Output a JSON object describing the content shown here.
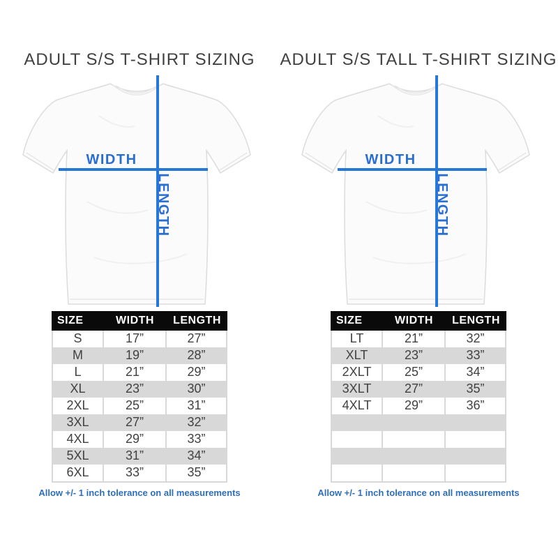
{
  "colors": {
    "measure_line_blue": "#2577d8",
    "measure_label_blue": "#2b6ed2",
    "note_blue": "#2f6eba",
    "table_header_bg": "#0a0a0a",
    "table_header_text": "#ffffff",
    "row_gray": "#d8d8d8",
    "body_text": "#414141",
    "title_text": "#414141"
  },
  "columns": [
    {
      "title": "ADULT S/S T-SHIRT SIZING",
      "diagram": {
        "width_label": "WIDTH",
        "length_label": "LENGTH"
      },
      "table": {
        "headers": [
          "SIZE",
          "WIDTH",
          "LENGTH"
        ],
        "rows": [
          [
            "S",
            "17”",
            "27”"
          ],
          [
            "M",
            "19”",
            "28”"
          ],
          [
            "L",
            "21”",
            "29”"
          ],
          [
            "XL",
            "23”",
            "30”"
          ],
          [
            "2XL",
            "25”",
            "31”"
          ],
          [
            "3XL",
            "27”",
            "32”"
          ],
          [
            "4XL",
            "29”",
            "33”"
          ],
          [
            "5XL",
            "31”",
            "34”"
          ],
          [
            "6XL",
            "33”",
            "35”"
          ]
        ]
      },
      "note": "Allow +/- 1 inch tolerance on all measurements"
    },
    {
      "title": "ADULT S/S TALL T-SHIRT SIZING",
      "diagram": {
        "width_label": "WIDTH",
        "length_label": "LENGTH"
      },
      "table": {
        "headers": [
          "SIZE",
          "WIDTH",
          "LENGTH"
        ],
        "rows": [
          [
            "LT",
            "21”",
            "32”"
          ],
          [
            "XLT",
            "23”",
            "33”"
          ],
          [
            "2XLT",
            "25”",
            "34”"
          ],
          [
            "3XLT",
            "27”",
            "35”"
          ],
          [
            "4XLT",
            "29”",
            "36”"
          ],
          [
            "",
            "",
            ""
          ],
          [
            "",
            "",
            ""
          ],
          [
            "",
            "",
            ""
          ],
          [
            "",
            "",
            ""
          ]
        ]
      },
      "note": "Allow +/- 1 inch tolerance on all measurements"
    }
  ]
}
